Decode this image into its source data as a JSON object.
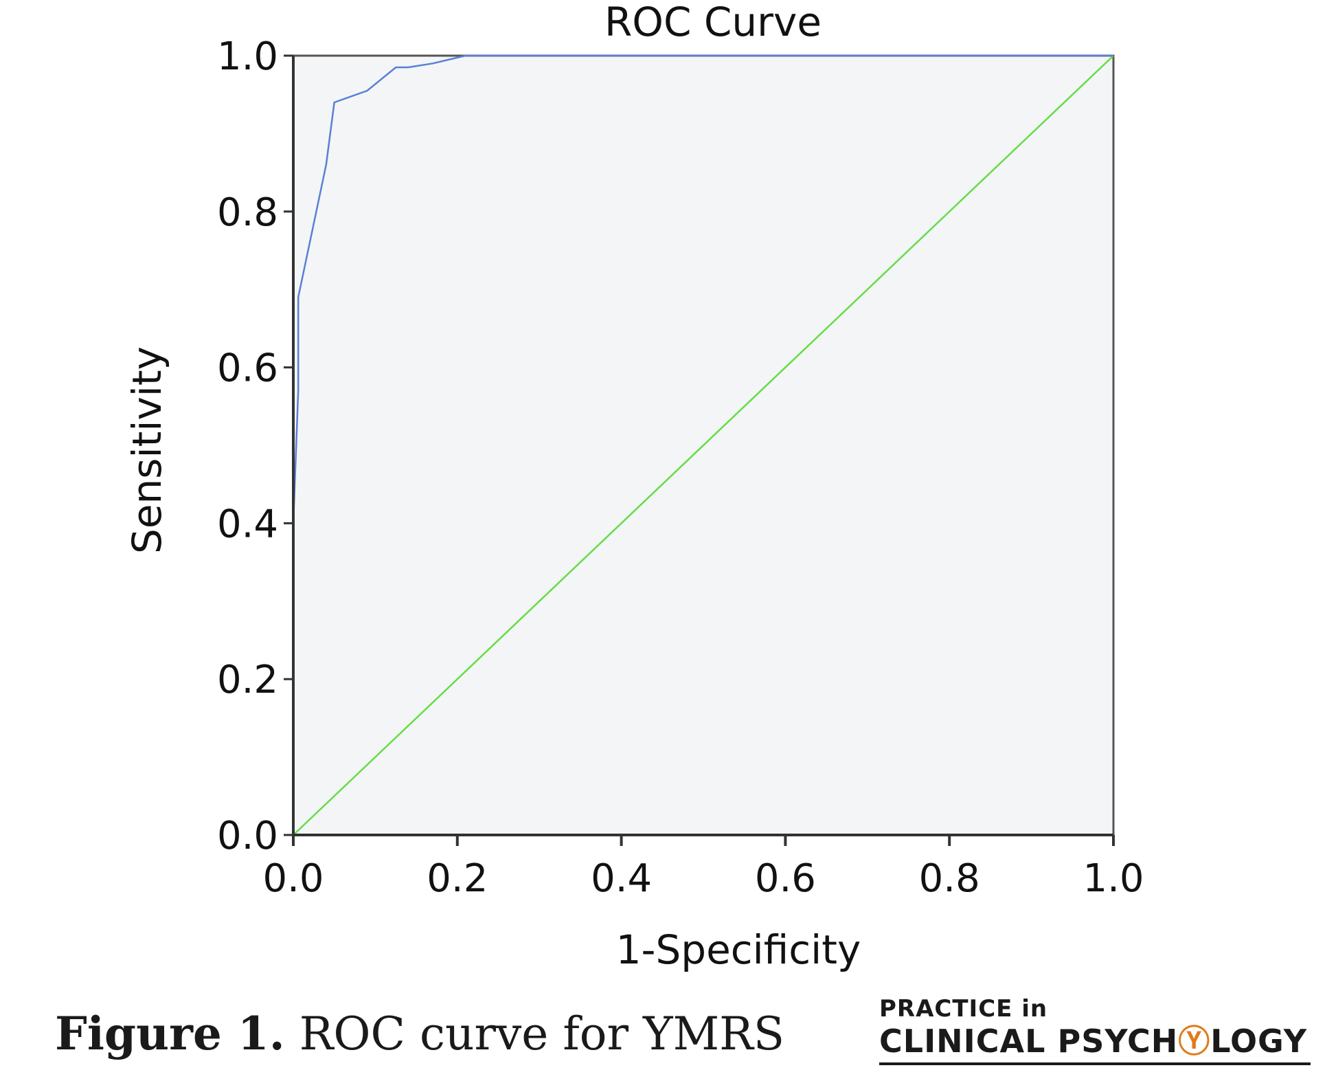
{
  "chart_data": {
    "type": "line",
    "title": "ROC Curve",
    "xlabel": "1-Specificity",
    "ylabel": "Sensitivity",
    "xlim": [
      0,
      1
    ],
    "ylim": [
      0,
      1
    ],
    "x_ticks": [
      "0.0",
      "0.2",
      "0.4",
      "0.6",
      "0.8",
      "1.0"
    ],
    "y_ticks": [
      "0.0",
      "0.2",
      "0.4",
      "0.6",
      "0.8",
      "1.0"
    ],
    "grid": false,
    "plot_background": "#f3f5f7",
    "series": [
      {
        "color": "#5b7fd6",
        "x": [
          0.0,
          0.0,
          0.006,
          0.006,
          0.02,
          0.04,
          0.05,
          0.09,
          0.125,
          0.14,
          0.17,
          0.21,
          0.3,
          1.0
        ],
        "y": [
          0.0,
          0.4,
          0.57,
          0.69,
          0.76,
          0.86,
          0.94,
          0.955,
          0.985,
          0.985,
          0.99,
          1.0,
          1.0,
          1.0
        ]
      },
      {
        "color": "#66dd44",
        "x": [
          0,
          1
        ],
        "y": [
          0,
          1
        ]
      }
    ]
  },
  "figure": {
    "caption_label": "Figure 1.",
    "caption_text": " ROC curve for YMRS"
  },
  "logo": {
    "line1": "PRACTICE in",
    "line2_a": "CLINICAL PSYCH",
    "line2_mark": "Ⓨ",
    "line2_b": "LOGY"
  }
}
